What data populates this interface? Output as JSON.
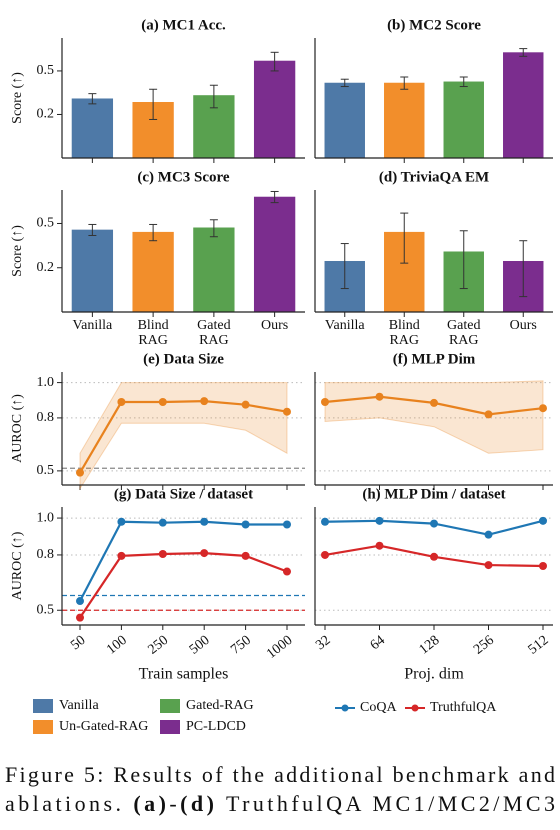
{
  "chart_data": [
    {
      "type": "bar",
      "title": "(a) MC1 Acc.",
      "ylabel": "Score (↑)",
      "log_y": true,
      "ylim": [
        0.08,
        1.0
      ],
      "yticks": [
        0.5,
        0.2
      ],
      "values": [
        0.28,
        0.26,
        0.3,
        0.62
      ],
      "errors": [
        0.03,
        0.08,
        0.07,
        0.12
      ]
    },
    {
      "type": "bar",
      "title": "(b) MC2 Score",
      "log_y": true,
      "ylim": [
        0.08,
        1.0
      ],
      "values": [
        0.39,
        0.39,
        0.4,
        0.74
      ],
      "errors": [
        0.03,
        0.05,
        0.04,
        0.06
      ]
    },
    {
      "type": "bar",
      "title": "(c) MC3 Score",
      "ylabel": "Score (↑)",
      "log_y": true,
      "ylim": [
        0.08,
        1.0
      ],
      "yticks": [
        0.5,
        0.2
      ],
      "categories": [
        "Vanilla",
        "Blind RAG",
        "Gated RAG",
        "Ours"
      ],
      "values": [
        0.44,
        0.42,
        0.46,
        0.87
      ],
      "errors": [
        0.05,
        0.07,
        0.08,
        0.1
      ]
    },
    {
      "type": "bar",
      "title": "(d) TriviaQA EM",
      "log_y": true,
      "ylim": [
        0.08,
        1.0
      ],
      "categories": [
        "Vanilla",
        "Blind RAG",
        "Gated RAG",
        "Ours"
      ],
      "values": [
        0.23,
        0.42,
        0.28,
        0.23
      ],
      "errors": [
        0.1,
        0.2,
        0.15,
        0.12
      ]
    },
    {
      "type": "line",
      "title": "(e) Data Size",
      "ylabel": "AUROC (↑)",
      "ylim": [
        0.42,
        1.06
      ],
      "yticks": [
        {
          "value": 1,
          "label": "1.0"
        },
        0.8,
        0.5
      ],
      "grid": true,
      "series": [
        {
          "color": "#e8821e",
          "values": [
            0.49,
            0.89,
            0.89,
            0.895,
            0.875,
            0.835
          ],
          "lower": [
            0.4,
            0.77,
            0.77,
            0.77,
            0.73,
            0.6
          ],
          "upper": [
            0.6,
            1.0,
            1.0,
            1.0,
            1.0,
            1.0
          ]
        }
      ],
      "hlines": [
        {
          "value": 0.515,
          "color": "#888888"
        }
      ]
    },
    {
      "type": "line",
      "title": "(f) MLP Dim",
      "ylim": [
        0.42,
        1.06
      ],
      "grid": true,
      "series": [
        {
          "color": "#e8821e",
          "values": [
            0.89,
            0.92,
            0.885,
            0.82,
            0.855
          ],
          "lower": [
            0.78,
            0.8,
            0.75,
            0.6,
            0.62
          ],
          "upper": [
            1.0,
            1.0,
            1.0,
            1.0,
            1.01
          ]
        }
      ]
    },
    {
      "type": "line",
      "title": "(g) Data Size / dataset",
      "ylabel": "AUROC (↑)",
      "xlabel": "Train samples",
      "ylim": [
        0.42,
        1.06
      ],
      "yticks": [
        {
          "value": 1,
          "label": "1.0"
        },
        0.8,
        0.5
      ],
      "grid": true,
      "categories": [
        "50",
        "100",
        "250",
        "500",
        "750",
        "1000"
      ],
      "series": [
        {
          "name": "CoQA",
          "color": "#1f77b4",
          "values": [
            0.55,
            0.98,
            0.975,
            0.98,
            0.965,
            0.965
          ]
        },
        {
          "name": "TruthfulQA",
          "color": "#d62728",
          "values": [
            0.46,
            0.795,
            0.805,
            0.81,
            0.795,
            0.71
          ]
        }
      ],
      "hlines": [
        {
          "value": 0.58,
          "color": "#1f77b4"
        },
        {
          "value": 0.5,
          "color": "#d62728"
        }
      ]
    },
    {
      "type": "line",
      "title": "(h) MLP Dim / dataset",
      "xlabel": "Proj. dim",
      "ylim": [
        0.42,
        1.06
      ],
      "grid": true,
      "categories": [
        "32",
        "64",
        "128",
        "256",
        "512"
      ],
      "series": [
        {
          "name": "CoQA",
          "color": "#1f77b4",
          "values": [
            0.98,
            0.985,
            0.97,
            0.91,
            0.985
          ]
        },
        {
          "name": "TruthfulQA",
          "color": "#d62728",
          "values": [
            0.8,
            0.85,
            0.79,
            0.745,
            0.74
          ]
        }
      ]
    }
  ],
  "legend": [
    {
      "name": "Vanilla",
      "color": "#4e79a7"
    },
    {
      "name": "Un-Gated-RAG",
      "color": "#f28e2b"
    },
    {
      "name": "Gated-RAG",
      "color": "#59a14f"
    },
    {
      "name": "PC-LDCD",
      "color": "#7b2d8e"
    }
  ],
  "caption": {
    "lines": [
      [
        {
          "text": "Figure 5: Results of the additional benchmark and",
          "bold": false
        }
      ],
      [
        {
          "text": "ablations. ",
          "bold": false
        },
        {
          "text": "(a)",
          "bold": true
        },
        {
          "text": "-",
          "bold": false
        },
        {
          "text": "(d)",
          "bold": true
        },
        {
          "text": " TruthfulQA MC1/MC2/MC3",
          "bold": false
        }
      ]
    ]
  }
}
